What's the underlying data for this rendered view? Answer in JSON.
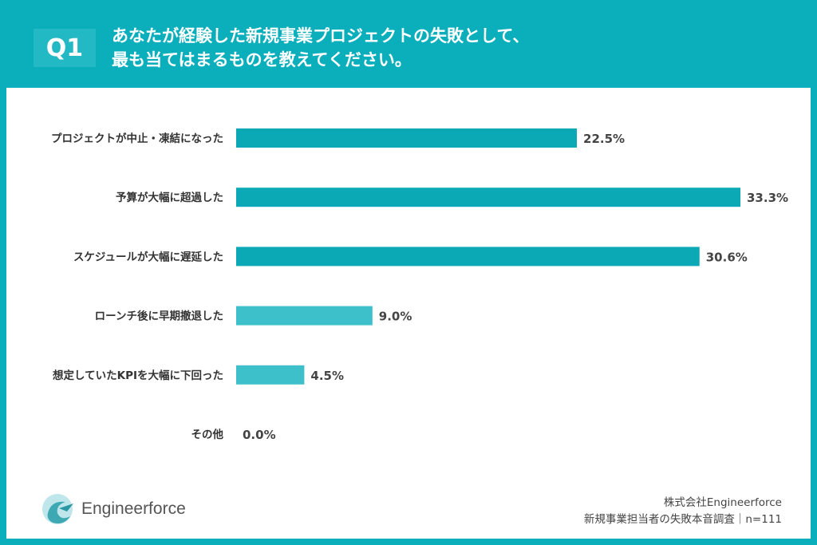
{
  "header": {
    "badge": "Q1",
    "title_line1": "あなたが経験した新規事業プロジェクトの失敗として、",
    "title_line2": "最も当てはまるものを教えてください。"
  },
  "chart_data": {
    "type": "bar",
    "orientation": "horizontal",
    "categories": [
      "プロジェクトが中止・凍結になった",
      "予算が大幅に超過した",
      "スケジュールが大幅に遅延した",
      "ローンチ後に早期撤退した",
      "想定していたKPIを大幅に下回った",
      "その他"
    ],
    "values": [
      22.5,
      33.3,
      30.6,
      9.0,
      4.5,
      0.0
    ],
    "value_labels": [
      "22.5%",
      "33.3%",
      "30.6%",
      "9.0%",
      "4.5%",
      "0.0%"
    ],
    "bar_colors": [
      "#0aa9b5",
      "#0aa9b5",
      "#0aa9b5",
      "#3ec0ca",
      "#3ec0ca",
      "#3ec0ca"
    ],
    "unit": "%",
    "grid": false
  },
  "footer": {
    "logo_text": "Engineerforce",
    "company": "株式会社Engineerforce",
    "survey": "新規事業担当者の失敗本音調査｜n=111"
  },
  "colors": {
    "background": "#0aafbb",
    "panel": "#ffffff"
  }
}
